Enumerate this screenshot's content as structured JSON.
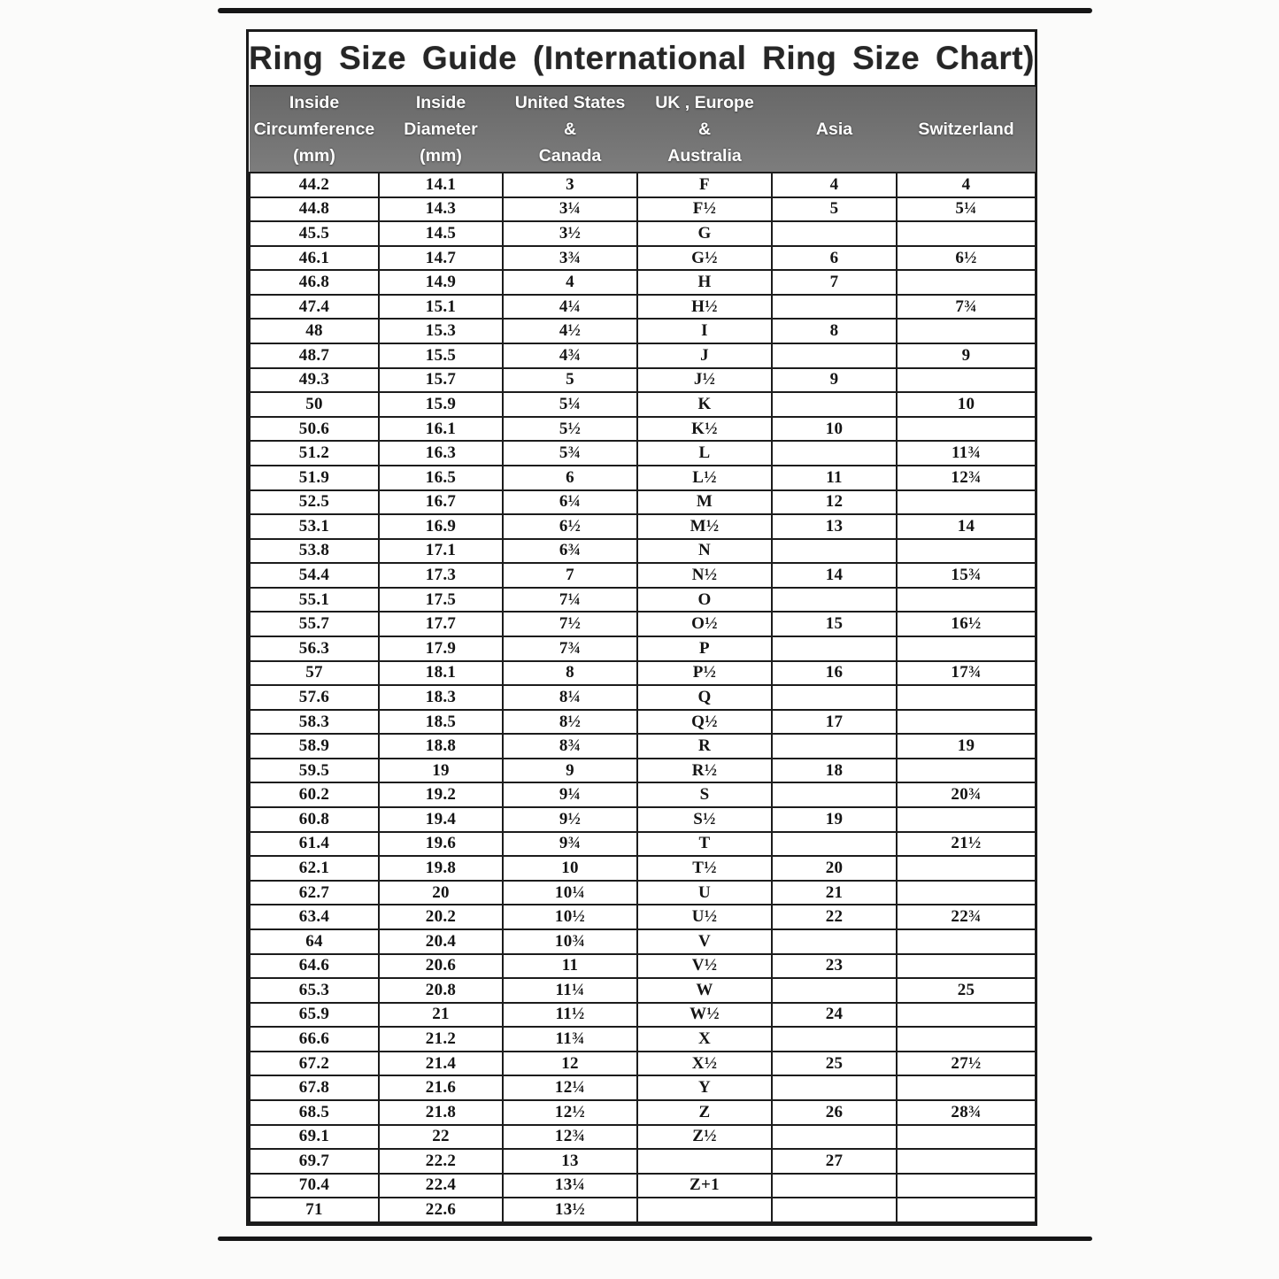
{
  "page": {
    "title": "Ring Size Guide (International Ring Size Chart)"
  },
  "table": {
    "headers": [
      "Inside\nCircumference\n(mm)",
      "Inside\nDiameter\n(mm)",
      "United States\n&\nCanada",
      "UK , Europe\n&\nAustralia",
      "Asia",
      "Switzerland"
    ],
    "rows": [
      [
        "44.2",
        "14.1",
        "3",
        "F",
        "4",
        "4"
      ],
      [
        "44.8",
        "14.3",
        "3¼",
        "F½",
        "5",
        "5¼"
      ],
      [
        "45.5",
        "14.5",
        "3½",
        "G",
        "",
        ""
      ],
      [
        "46.1",
        "14.7",
        "3¾",
        "G½",
        "6",
        "6½"
      ],
      [
        "46.8",
        "14.9",
        "4",
        "H",
        "7",
        ""
      ],
      [
        "47.4",
        "15.1",
        "4¼",
        "H½",
        "",
        "7¾"
      ],
      [
        "48",
        "15.3",
        "4½",
        "I",
        "8",
        ""
      ],
      [
        "48.7",
        "15.5",
        "4¾",
        "J",
        "",
        "9"
      ],
      [
        "49.3",
        "15.7",
        "5",
        "J½",
        "9",
        ""
      ],
      [
        "50",
        "15.9",
        "5¼",
        "K",
        "",
        "10"
      ],
      [
        "50.6",
        "16.1",
        "5½",
        "K½",
        "10",
        ""
      ],
      [
        "51.2",
        "16.3",
        "5¾",
        "L",
        "",
        "11¾"
      ],
      [
        "51.9",
        "16.5",
        "6",
        "L½",
        "11",
        "12¾"
      ],
      [
        "52.5",
        "16.7",
        "6¼",
        "M",
        "12",
        ""
      ],
      [
        "53.1",
        "16.9",
        "6½",
        "M½",
        "13",
        "14"
      ],
      [
        "53.8",
        "17.1",
        "6¾",
        "N",
        "",
        ""
      ],
      [
        "54.4",
        "17.3",
        "7",
        "N½",
        "14",
        "15¾"
      ],
      [
        "55.1",
        "17.5",
        "7¼",
        "O",
        "",
        ""
      ],
      [
        "55.7",
        "17.7",
        "7½",
        "O½",
        "15",
        "16½"
      ],
      [
        "56.3",
        "17.9",
        "7¾",
        "P",
        "",
        ""
      ],
      [
        "57",
        "18.1",
        "8",
        "P½",
        "16",
        "17¾"
      ],
      [
        "57.6",
        "18.3",
        "8¼",
        "Q",
        "",
        ""
      ],
      [
        "58.3",
        "18.5",
        "8½",
        "Q½",
        "17",
        ""
      ],
      [
        "58.9",
        "18.8",
        "8¾",
        "R",
        "",
        "19"
      ],
      [
        "59.5",
        "19",
        "9",
        "R½",
        "18",
        ""
      ],
      [
        "60.2",
        "19.2",
        "9¼",
        "S",
        "",
        "20¾"
      ],
      [
        "60.8",
        "19.4",
        "9½",
        "S½",
        "19",
        ""
      ],
      [
        "61.4",
        "19.6",
        "9¾",
        "T",
        "",
        "21½"
      ],
      [
        "62.1",
        "19.8",
        "10",
        "T½",
        "20",
        ""
      ],
      [
        "62.7",
        "20",
        "10¼",
        "U",
        "21",
        ""
      ],
      [
        "63.4",
        "20.2",
        "10½",
        "U½",
        "22",
        "22¾"
      ],
      [
        "64",
        "20.4",
        "10¾",
        "V",
        "",
        ""
      ],
      [
        "64.6",
        "20.6",
        "11",
        "V½",
        "23",
        ""
      ],
      [
        "65.3",
        "20.8",
        "11¼",
        "W",
        "",
        "25"
      ],
      [
        "65.9",
        "21",
        "11½",
        "W½",
        "24",
        ""
      ],
      [
        "66.6",
        "21.2",
        "11¾",
        "X",
        "",
        ""
      ],
      [
        "67.2",
        "21.4",
        "12",
        "X½",
        "25",
        "27½"
      ],
      [
        "67.8",
        "21.6",
        "12¼",
        "Y",
        "",
        ""
      ],
      [
        "68.5",
        "21.8",
        "12½",
        "Z",
        "26",
        "28¾"
      ],
      [
        "69.1",
        "22",
        "12¾",
        "Z½",
        "",
        ""
      ],
      [
        "69.7",
        "22.2",
        "13",
        "",
        "27",
        ""
      ],
      [
        "70.4",
        "22.4",
        "13¼",
        "Z+1",
        "",
        ""
      ],
      [
        "71",
        "22.6",
        "13½",
        "",
        "",
        ""
      ]
    ]
  }
}
